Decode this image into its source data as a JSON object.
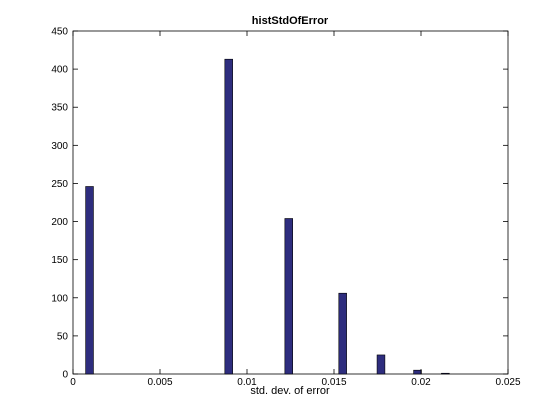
{
  "chart_data": {
    "type": "bar",
    "title": "histStdOfError",
    "xlabel": "std. dev. of error",
    "ylabel": "",
    "xlim": [
      0,
      0.025
    ],
    "ylim": [
      0,
      450
    ],
    "xticks": [
      0,
      0.005,
      0.01,
      0.015,
      0.02,
      0.025
    ],
    "xtick_labels": [
      "0",
      "0.005",
      "0.01",
      "0.015",
      "0.02",
      "0.025"
    ],
    "yticks": [
      0,
      50,
      100,
      150,
      200,
      250,
      300,
      350,
      400,
      450
    ],
    "ytick_labels": [
      "0",
      "50",
      "100",
      "150",
      "200",
      "250",
      "300",
      "350",
      "400",
      "450"
    ],
    "bar_width": 0.00045,
    "x": [
      0.00095,
      0.00895,
      0.0124,
      0.0155,
      0.0177,
      0.0198,
      0.0214
    ],
    "values": [
      246,
      413,
      204,
      106,
      25,
      5,
      1
    ],
    "grid": false,
    "colors": {
      "bar_fill": "#2e2d7e",
      "bar_edge": "#000000",
      "axes": "#000000",
      "background": "#ffffff"
    }
  }
}
